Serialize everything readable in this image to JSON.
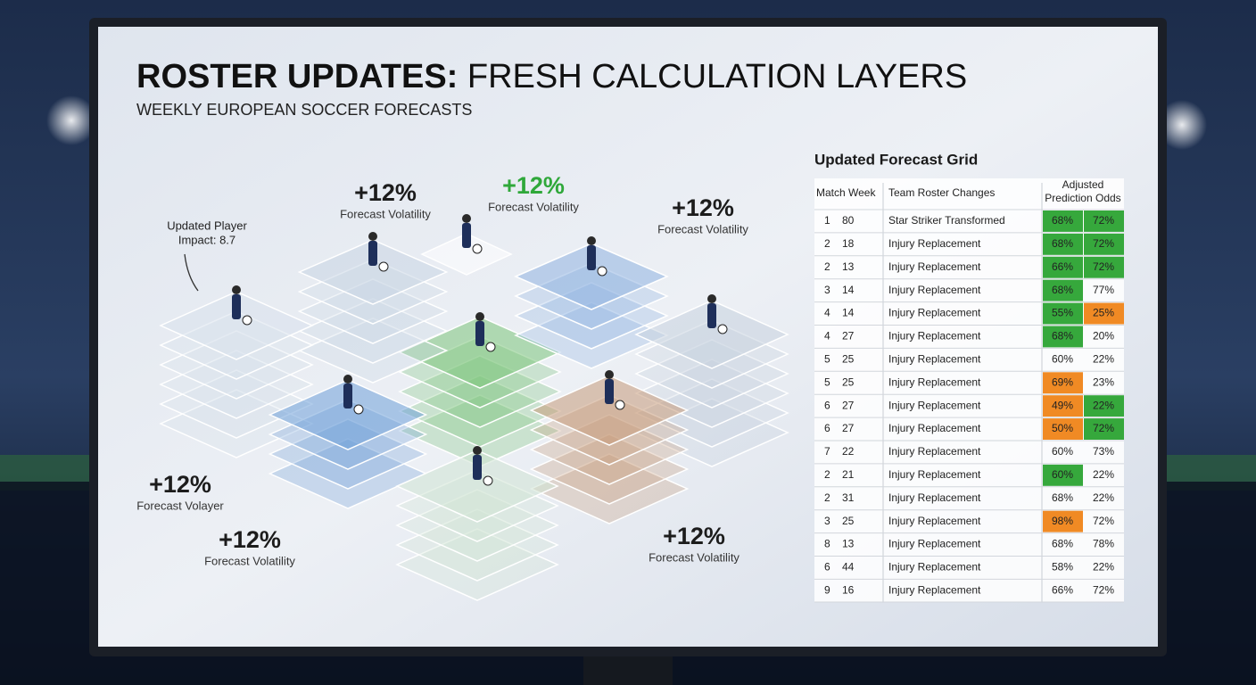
{
  "header": {
    "title_bold": "ROSTER UPDATES:",
    "title_rest": "FRESH CALCULATION LAYERS",
    "subtitle": "WEEKLY EUROPEAN SOCCER FORECASTS"
  },
  "player_impact": [
    "Updated Player",
    "Impact: 8.7"
  ],
  "callouts": [
    {
      "value": "+12%",
      "label": "Forecast Volatility",
      "color": "#1c1c1c"
    },
    {
      "value": "+12%",
      "label": "Forecast Volatility",
      "color": "#2fa83a"
    },
    {
      "value": "+12%",
      "label": "Forecast Volatility",
      "color": "#1c1c1c"
    },
    {
      "value": "+12%",
      "label": "Forecast Volayer",
      "color": "#1c1c1c"
    },
    {
      "value": "+12%",
      "label": "Forecast Volatility",
      "color": "#1c1c1c"
    },
    {
      "value": "+12%",
      "label": "Forecast Volatility",
      "color": "#1c1c1c"
    }
  ],
  "table": {
    "title": "Updated Forecast Grid",
    "headers": [
      "Match Week",
      "Team Roster Changes",
      "Adjusted Prediction Odds"
    ],
    "rows": [
      {
        "week": "1",
        "num": "80",
        "change": "Star Striker Transformed",
        "odds": [
          "68%",
          "72%"
        ],
        "colors": [
          "#36a83c",
          "#36a83c"
        ]
      },
      {
        "week": "2",
        "num": "18",
        "change": "Injury Replacement",
        "odds": [
          "68%",
          "72%"
        ],
        "colors": [
          "#36a83c",
          "#36a83c"
        ]
      },
      {
        "week": "2",
        "num": "13",
        "change": "Injury Replacement",
        "odds": [
          "66%",
          "72%"
        ],
        "colors": [
          "#36a83c",
          "#36a83c"
        ]
      },
      {
        "week": "3",
        "num": "14",
        "change": "Injury Replacement",
        "odds": [
          "68%",
          "77%"
        ],
        "colors": [
          "#36a83c",
          null
        ]
      },
      {
        "week": "4",
        "num": "14",
        "change": "Injury Replacement",
        "odds": [
          "55%",
          "25%"
        ],
        "colors": [
          "#36a83c",
          "#f08a24"
        ]
      },
      {
        "week": "4",
        "num": "27",
        "change": "Injury Replacement",
        "odds": [
          "68%",
          "20%"
        ],
        "colors": [
          "#36a83c",
          null
        ]
      },
      {
        "week": "5",
        "num": "25",
        "change": "Injury Replacement",
        "odds": [
          "60%",
          "22%"
        ],
        "colors": [
          null,
          null
        ]
      },
      {
        "week": "5",
        "num": "25",
        "change": "Injury Replacement",
        "odds": [
          "69%",
          "23%"
        ],
        "colors": [
          "#f08a24",
          null
        ]
      },
      {
        "week": "6",
        "num": "27",
        "change": "Injury Replacement",
        "odds": [
          "49%",
          "22%"
        ],
        "colors": [
          "#f08a24",
          "#36a83c"
        ]
      },
      {
        "week": "6",
        "num": "27",
        "change": "Injury Replacement",
        "odds": [
          "50%",
          "72%"
        ],
        "colors": [
          "#f08a24",
          "#36a83c"
        ]
      },
      {
        "week": "7",
        "num": "22",
        "change": "Injury Replacement",
        "odds": [
          "60%",
          "73%"
        ],
        "colors": [
          null,
          null
        ]
      },
      {
        "week": "2",
        "num": "21",
        "change": "Injury Replacement",
        "odds": [
          "60%",
          "22%"
        ],
        "colors": [
          "#36a83c",
          null
        ]
      },
      {
        "week": "2",
        "num": "31",
        "change": "Injury Replacement",
        "odds": [
          "68%",
          "22%"
        ],
        "colors": [
          null,
          null
        ]
      },
      {
        "week": "3",
        "num": "25",
        "change": "Injury Replacement",
        "odds": [
          "98%",
          "72%"
        ],
        "colors": [
          "#f08a24",
          null
        ]
      },
      {
        "week": "8",
        "num": "13",
        "change": "Injury Replacement",
        "odds": [
          "68%",
          "78%"
        ],
        "colors": [
          null,
          null
        ]
      },
      {
        "week": "6",
        "num": "44",
        "change": "Injury Replacement",
        "odds": [
          "58%",
          "22%"
        ],
        "colors": [
          null,
          null
        ]
      },
      {
        "week": "9",
        "num": "16",
        "change": "Injury Replacement",
        "odds": [
          "66%",
          "72%"
        ],
        "colors": [
          null,
          null
        ]
      }
    ]
  }
}
